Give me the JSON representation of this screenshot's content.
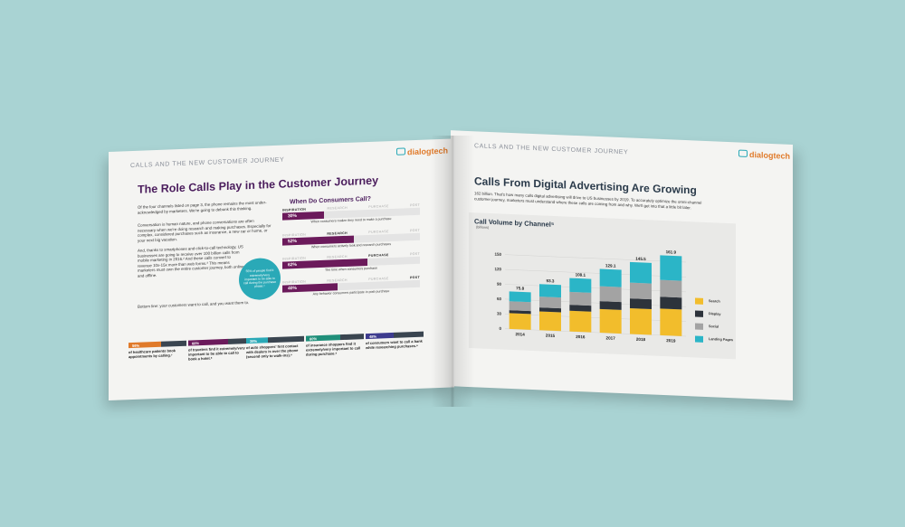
{
  "left_page": {
    "section_label": "CALLS AND THE NEW CUSTOMER JOURNEY",
    "logo_text": "dialogtech",
    "title": "The Role Calls Play in the Customer Journey",
    "paragraphs": [
      "Of the four channels listed on page 3, the phone remains the most under-acknowledged by marketers. We're going to debunk this thinking.",
      "Conversation is human nature, and phone conversations are often necessary when we're doing research and making purchases. Especially for complex, considered purchases such as insurance, a new car or home, or your next big vacation.",
      "And, thanks to smartphones and click-to-call technology, US businesses are going to receive over 100 billion calls from mobile marketing in 2016.² And these calls convert to revenue 10x-15x more than web forms.³ This means marketers must own the entire customer journey, both online and offline.",
      "Bottom line: your customers want to call, and you want them to."
    ],
    "bubble_text": "55% of people find it extremely/very important to be able to call during the purchase phase.⁶",
    "journey": {
      "title": "When Do Consumers Call?",
      "stage_names": [
        "INSPIRATION",
        "RESEARCH",
        "PURCHASE",
        "POST"
      ],
      "stages": [
        {
          "active": 0,
          "pct": "30%",
          "value": 30,
          "caption": "When consumers realize they need to make a purchase"
        },
        {
          "active": 1,
          "pct": "52%",
          "value": 52,
          "caption": "When consumers actively look and research purchases"
        },
        {
          "active": 2,
          "pct": "62%",
          "value": 62,
          "caption": "The time when consumers purchase"
        },
        {
          "active": 3,
          "pct": "40%",
          "value": 40,
          "caption": "Any behavior consumers participate in post-purchase"
        }
      ]
    },
    "stats": [
      {
        "pct": "56%",
        "value": 56,
        "color": "#e07a2a",
        "text": "of healthcare patients book appointments by calling.⁷"
      },
      {
        "pct": "68%",
        "value": 68,
        "color": "#6b1a5b",
        "text": "of travelers find it extremely/very important to be able to call to book a hotel.⁸"
      },
      {
        "pct": "38%",
        "value": 38,
        "color": "#2aa9b7",
        "text": "of auto shoppers' first contact with dealers is over the phone (second only to walk-ins).⁹"
      },
      {
        "pct": "60%",
        "value": 60,
        "color": "#1f8f7a",
        "text": "of insurance shoppers find it extremely/very important to call during purchase.⁶"
      },
      {
        "pct": "48%",
        "value": 48,
        "color": "#3d3b8e",
        "text": "of consumers want to call a bank while researching purchases.⁶"
      }
    ]
  },
  "right_page": {
    "section_label": "CALLS AND THE NEW CUSTOMER JOURNEY",
    "logo_text": "dialogtech",
    "title": "Calls From Digital Advertising Are Growing",
    "intro": "162 billion. That's how many calls digital advertising will drive to US businesses by 2019. To accurately optimize the omni-channel customer journey, marketers must understand where these calls are coming from and why. We'll get into that a little bit later."
  },
  "chart_data": {
    "type": "bar",
    "stacked": true,
    "title": "Call Volume by Channel⁵",
    "subtitle": "(billions)",
    "categories": [
      "2014",
      "2015",
      "2016",
      "2017",
      "2018",
      "2019"
    ],
    "totals": [
      "75.8",
      "93.3",
      "108.1",
      "129.1",
      "145.5",
      "161.9"
    ],
    "ylim": [
      0,
      150
    ],
    "yticks": [
      0,
      30,
      60,
      90,
      120,
      150
    ],
    "series": [
      {
        "name": "Search",
        "color": "#f2bd2c",
        "values": [
          32,
          38,
          42,
          48,
          52,
          54
        ]
      },
      {
        "name": "Display",
        "color": "#2d333b",
        "values": [
          6,
          8,
          12,
          16,
          20,
          24
        ]
      },
      {
        "name": "Social",
        "color": "#a3a3a3",
        "values": [
          18,
          22,
          26,
          30,
          32,
          34
        ]
      },
      {
        "name": "Landing Pages",
        "color": "#2bb5c7",
        "values": [
          19.8,
          25.3,
          28.1,
          35.1,
          41.5,
          49.9
        ]
      }
    ],
    "legend_position": "right"
  }
}
